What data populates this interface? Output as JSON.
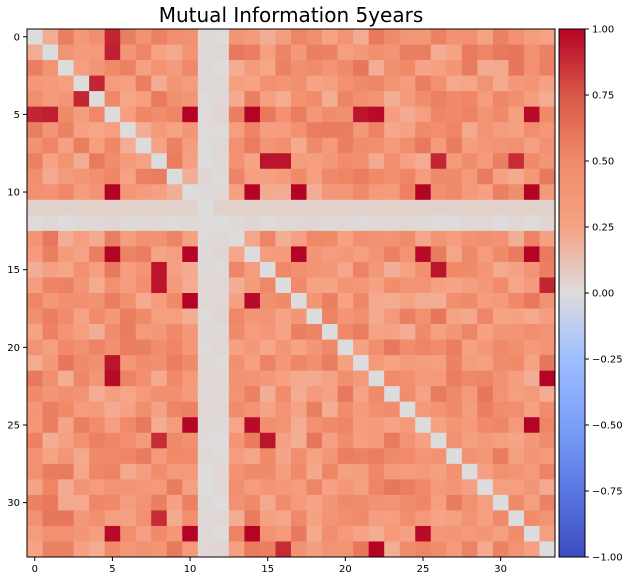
{
  "chart_data": {
    "type": "heatmap",
    "title": "Mutual Information 5years",
    "xlabel": "",
    "ylabel": "",
    "size": 34,
    "x_ticks": [
      "0",
      "5",
      "10",
      "15",
      "20",
      "25",
      "30"
    ],
    "y_ticks": [
      "0",
      "5",
      "10",
      "15",
      "20",
      "25",
      "30"
    ],
    "colormap": "coolwarm",
    "vmin": -1.0,
    "vmax": 1.0,
    "colorbar_ticks": [
      "1.00",
      "0.75",
      "0.50",
      "0.25",
      "0.00",
      "−0.25",
      "−0.50",
      "−0.75",
      "−1.00"
    ],
    "diagonal_value": 0.0,
    "low_rows": [
      11
    ],
    "near_zero_columns": [
      11,
      12
    ],
    "high_pairs": [
      [
        0,
        5,
        0.9
      ],
      [
        1,
        5,
        0.92
      ],
      [
        3,
        4,
        0.9
      ],
      [
        4,
        3,
        0.9
      ],
      [
        5,
        10,
        1.0
      ],
      [
        5,
        14,
        1.0
      ],
      [
        5,
        22,
        0.98
      ],
      [
        5,
        32,
        0.98
      ],
      [
        8,
        16,
        0.95
      ],
      [
        8,
        26,
        0.9
      ],
      [
        8,
        31,
        0.88
      ],
      [
        10,
        5,
        1.0
      ],
      [
        10,
        14,
        1.0
      ],
      [
        10,
        17,
        1.0
      ],
      [
        10,
        25,
        0.98
      ],
      [
        10,
        32,
        1.0
      ],
      [
        14,
        5,
        1.0
      ],
      [
        14,
        10,
        1.0
      ],
      [
        14,
        17,
        1.0
      ],
      [
        14,
        25,
        0.98
      ],
      [
        14,
        32,
        1.0
      ],
      [
        15,
        8,
        0.95
      ],
      [
        15,
        26,
        0.95
      ],
      [
        16,
        33,
        0.9
      ],
      [
        17,
        10,
        1.0
      ],
      [
        17,
        14,
        0.98
      ],
      [
        21,
        5,
        0.95
      ],
      [
        22,
        33,
        1.0
      ],
      [
        25,
        10,
        1.0
      ],
      [
        25,
        14,
        0.98
      ],
      [
        25,
        32,
        1.0
      ],
      [
        26,
        8,
        0.88
      ],
      [
        26,
        15,
        0.95
      ],
      [
        32,
        5,
        0.98
      ],
      [
        32,
        10,
        1.0
      ],
      [
        32,
        25,
        0.98
      ],
      [
        33,
        22,
        1.0
      ],
      [
        33,
        16,
        0.88
      ]
    ],
    "base_range": [
      0.2,
      0.6
    ],
    "grid": false,
    "colorbar_position": "right"
  }
}
